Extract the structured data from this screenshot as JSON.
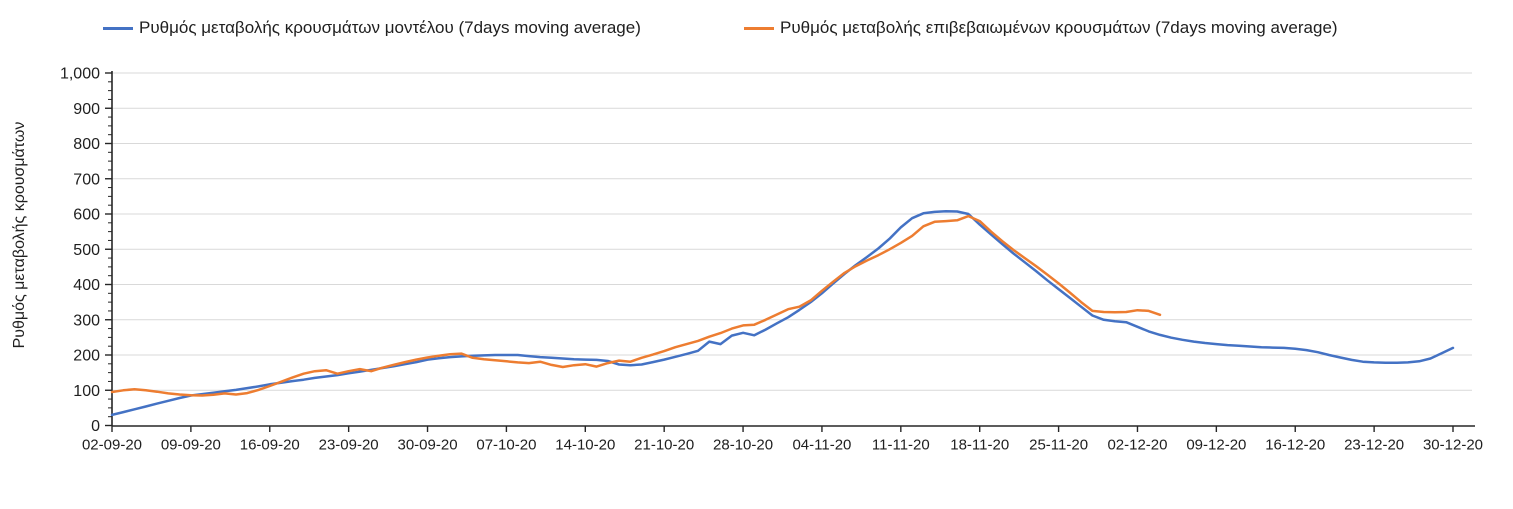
{
  "page": {
    "background": "#FFFFFF"
  },
  "chart_data": {
    "type": "line",
    "title": "",
    "xlabel": "",
    "ylabel": "Ρυθμός μεταβολής κρουσμάτων",
    "ylim": [
      0,
      1000
    ],
    "y_tick_step": 100,
    "y_minor_tick_step": 25,
    "y_tick_labels": [
      "0",
      "100",
      "200",
      "300",
      "400",
      "500",
      "600",
      "700",
      "800",
      "900",
      "1,000"
    ],
    "grid": "horizontal-only",
    "gridline_color": "#D9D9D9",
    "axis_color": "#262626",
    "legend_position": "top",
    "x_days_per_tick": 7,
    "x_tick_labels": [
      "02-09-20",
      "09-09-20",
      "16-09-20",
      "23-09-20",
      "30-09-20",
      "07-10-20",
      "14-10-20",
      "21-10-20",
      "28-10-20",
      "04-11-20",
      "11-11-20",
      "18-11-20",
      "25-11-20",
      "02-12-20",
      "09-12-20",
      "16-12-20",
      "23-12-20",
      "30-12-20"
    ],
    "series": [
      {
        "name": "Ρυθμός μεταβολής κρουσμάτων μοντέλου (7days moving average)",
        "color": "#4472C4",
        "start_day": 0,
        "values": [
          30,
          38,
          46,
          54,
          62,
          70,
          78,
          85,
          89,
          93,
          97,
          101,
          106,
          111,
          117,
          121,
          126,
          130,
          135,
          139,
          143,
          148,
          153,
          158,
          163,
          168,
          174,
          180,
          187,
          191,
          194,
          196,
          198,
          199,
          200,
          200,
          200,
          197,
          194,
          192,
          190,
          188,
          187,
          186,
          183,
          173,
          171,
          173,
          180,
          187,
          195,
          203,
          212,
          238,
          231,
          255,
          263,
          256,
          272,
          290,
          307,
          328,
          350,
          375,
          403,
          430,
          455,
          478,
          502,
          530,
          562,
          588,
          602,
          606,
          608,
          607,
          600,
          570,
          542,
          515,
          488,
          463,
          438,
          412,
          387,
          362,
          337,
          312,
          300,
          296,
          293,
          280,
          267,
          257,
          249,
          243,
          238,
          234,
          231,
          228,
          226,
          224,
          222,
          221,
          220,
          218,
          214,
          208,
          200,
          193,
          186,
          181,
          179,
          178,
          178,
          179,
          182,
          190,
          205,
          220
        ]
      },
      {
        "name": "Ρυθμός μεταβολής επιβεβαιωμένων κρουσμάτων (7days moving average)",
        "color": "#ED7D31",
        "start_day": 0,
        "values": [
          95,
          100,
          103,
          100,
          96,
          91,
          88,
          86,
          85,
          87,
          91,
          88,
          92,
          101,
          112,
          124,
          136,
          147,
          154,
          157,
          147,
          154,
          160,
          154,
          164,
          172,
          180,
          187,
          193,
          198,
          202,
          204,
          192,
          188,
          185,
          182,
          179,
          177,
          181,
          172,
          166,
          171,
          174,
          167,
          177,
          184,
          181,
          192,
          201,
          211,
          222,
          231,
          240,
          252,
          262,
          275,
          284,
          286,
          300,
          315,
          330,
          337,
          355,
          382,
          408,
          433,
          452,
          468,
          483,
          500,
          518,
          538,
          565,
          578,
          580,
          582,
          594,
          580,
          550,
          523,
          498,
          475,
          452,
          428,
          403,
          377,
          350,
          325,
          322,
          321,
          322,
          327,
          325,
          314
        ]
      }
    ]
  }
}
